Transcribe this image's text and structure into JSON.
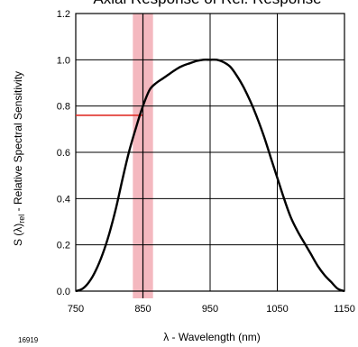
{
  "chart_data": {
    "type": "line",
    "title": "Axial Response of Rel. Response",
    "xlabel": "λ - Wavelength (nm)",
    "ylabel": "S (λ) rel - Relative Spectral Sensitivity",
    "ylabel_parts": {
      "main": "S (λ)",
      "sub": "rel",
      "rest": " - Relative Spectral Sensitivity"
    },
    "xlim": [
      750,
      1150
    ],
    "ylim": [
      0.0,
      1.2
    ],
    "xticks": [
      "750",
      "850",
      "950",
      "1050",
      "1150"
    ],
    "yticks": [
      "0.0",
      "0.2",
      "0.4",
      "0.6",
      "0.8",
      "1.0",
      "1.2"
    ],
    "grid": true,
    "figure_number": "16919",
    "series": [
      {
        "x": [
          750,
          760,
          770,
          780,
          790,
          800,
          810,
          820,
          830,
          840,
          850,
          860,
          870,
          880,
          890,
          900,
          910,
          920,
          930,
          940,
          950,
          960,
          970,
          980,
          990,
          1000,
          1010,
          1020,
          1030,
          1040,
          1050,
          1060,
          1070,
          1080,
          1090,
          1100,
          1110,
          1120,
          1130,
          1140,
          1150
        ],
        "y": [
          0.0,
          0.01,
          0.04,
          0.09,
          0.16,
          0.25,
          0.36,
          0.49,
          0.61,
          0.71,
          0.8,
          0.87,
          0.9,
          0.92,
          0.94,
          0.96,
          0.975,
          0.985,
          0.995,
          1.0,
          1.0,
          1.0,
          0.99,
          0.97,
          0.93,
          0.88,
          0.82,
          0.75,
          0.67,
          0.58,
          0.49,
          0.4,
          0.32,
          0.26,
          0.21,
          0.16,
          0.11,
          0.07,
          0.04,
          0.01,
          0.0
        ],
        "color": "#000000"
      }
    ],
    "highlight_band": {
      "x_start": 835,
      "x_end": 865,
      "color": "#f4b8bf"
    },
    "marker_line": {
      "x": 850,
      "color": "#000000"
    },
    "reference_line": {
      "y": 0.76,
      "x_from": 750,
      "x_to": 850,
      "color": "#e0302a"
    }
  }
}
